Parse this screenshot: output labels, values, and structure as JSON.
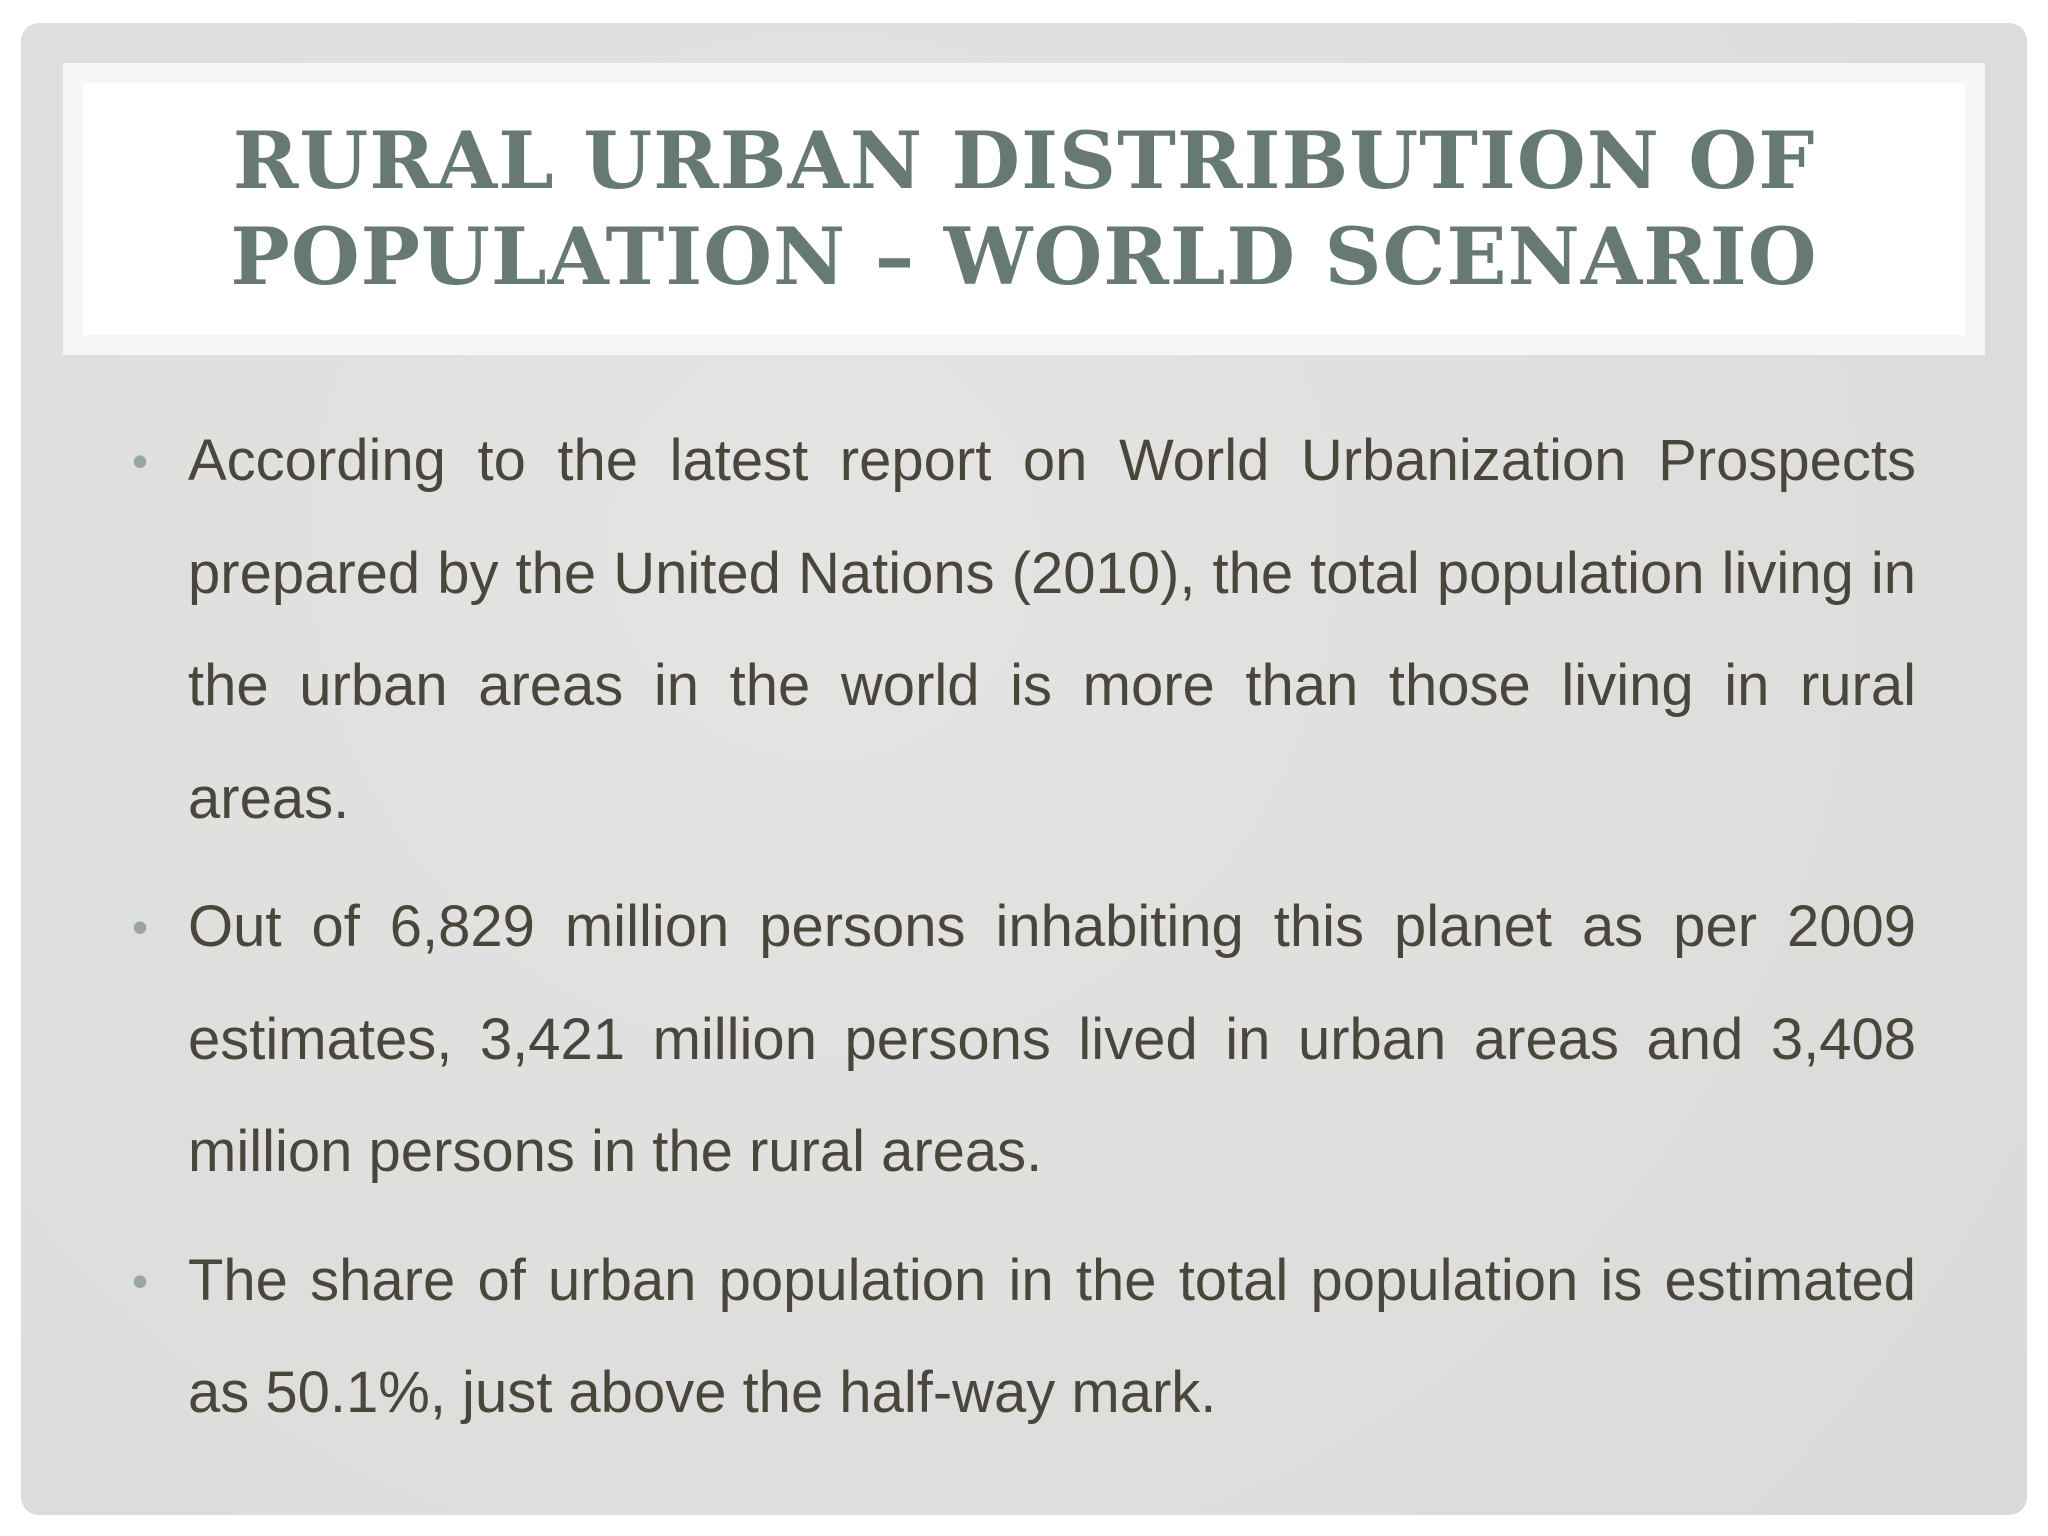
{
  "slide": {
    "title_lines": [
      "RURAL URBAN DISTRIBUTION OF",
      "POPULATION – WORLD SCENARIO"
    ],
    "bullets": [
      {
        "text": "According to the latest report on World Urbanization Prospects prepared by the United Nations (2010), the total population living in the urban areas in the world is more than those living in rural areas."
      },
      {
        "text": "Out of 6,829 million persons inhabiting this planet as per 2009 estimates, 3,421 million persons lived in urban areas and 3,408 million persons in the rural areas."
      },
      {
        "text": "The share of urban population in the total population is estimated as 50.1%, just above the half-way mark."
      }
    ]
  },
  "colors": {
    "title": "#667a73",
    "body_text": "#4b463c",
    "bullet_marker": "#9aa6a2",
    "slide_background": "#e0e0df",
    "title_band": "#ffffff"
  }
}
